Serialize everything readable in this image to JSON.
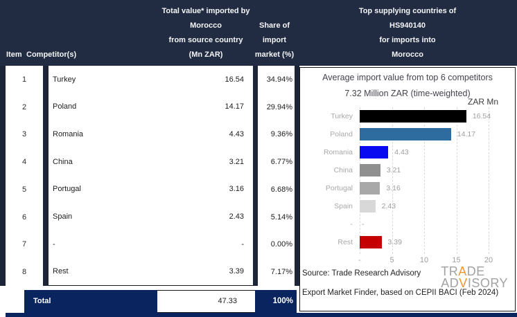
{
  "table": {
    "header": {
      "item": "Item",
      "competitors": "Competitor(s)",
      "value_lines": [
        "Total value* imported by",
        "Morocco",
        "from source country",
        "(Mn ZAR)"
      ],
      "share_lines": [
        "Share of",
        "import",
        "market (%)"
      ]
    },
    "rows": [
      {
        "item": "1",
        "competitor": "Turkey",
        "value": "16.54",
        "share": "34.94%"
      },
      {
        "item": "2",
        "competitor": "Poland",
        "value": "14.17",
        "share": "29.94%"
      },
      {
        "item": "3",
        "competitor": "Romania",
        "value": "4.43",
        "share": "9.36%"
      },
      {
        "item": "4",
        "competitor": "China",
        "value": "3.21",
        "share": "6.77%"
      },
      {
        "item": "5",
        "competitor": "Portugal",
        "value": "3.16",
        "share": "6.68%"
      },
      {
        "item": "6",
        "competitor": "Spain",
        "value": "2.43",
        "share": "5.14%"
      },
      {
        "item": "7",
        "competitor": "-",
        "value": "-",
        "share": "0.00%"
      },
      {
        "item": "8",
        "competitor": "Rest",
        "value": "3.39",
        "share": "7.17%"
      }
    ],
    "total": {
      "label": "Total",
      "value": "47.33",
      "share": "100%"
    }
  },
  "right_panel": {
    "header_lines": [
      "Top supplying countries of",
      "HS940140",
      "for imports into",
      "Morocco"
    ],
    "source_line1": "Source: Trade Research Advisory",
    "source_line2": "Export Market Finder, based on CEPII BACI (Feb 2024)",
    "logo": {
      "line1_pre": "TR",
      "line1_accent": "A",
      "line1_post": "DE",
      "line2_pre": "AD",
      "line2_accent": "V",
      "line2_post": "ISORY"
    }
  },
  "chart_data": {
    "type": "bar",
    "orientation": "horizontal",
    "title": "Average import value from top 6 competitors",
    "subtitle": "7.32 Million ZAR (time-weighted)",
    "unit_label": "ZAR Mn",
    "categories": [
      "Turkey",
      "Poland",
      "Romania",
      "China",
      "Portugal",
      "Spain",
      "-",
      "Rest"
    ],
    "values": [
      16.54,
      14.17,
      4.43,
      3.21,
      3.16,
      2.43,
      null,
      3.39
    ],
    "value_labels": [
      "16.54",
      "14.17",
      "4.43",
      "3.21",
      "3.16",
      "2.43",
      "-",
      "3.39"
    ],
    "bar_colors": [
      "#000000",
      "#2e6b9e",
      "#0a0af0",
      "#8f8f8f",
      "#a8a8a8",
      "#d8d8d8",
      "#ffffff",
      "#c50000"
    ],
    "xlim": [
      0,
      20
    ],
    "xticks": [
      "-",
      "5",
      "10",
      "15",
      "20"
    ],
    "xtick_values": [
      0,
      5,
      10,
      15,
      20
    ],
    "grid": "dashed-vertical",
    "legend": "none"
  },
  "colors": {
    "header_navy": "#212b42",
    "total_navy": "#0a2460",
    "separator_navy": "#1d2639",
    "accent_orange": "#f2992e",
    "logo_gray": "#a2a2a2",
    "gridline": "#d9d9d9",
    "chart_text": "#43434e",
    "muted_text": "#9e9e9e"
  }
}
